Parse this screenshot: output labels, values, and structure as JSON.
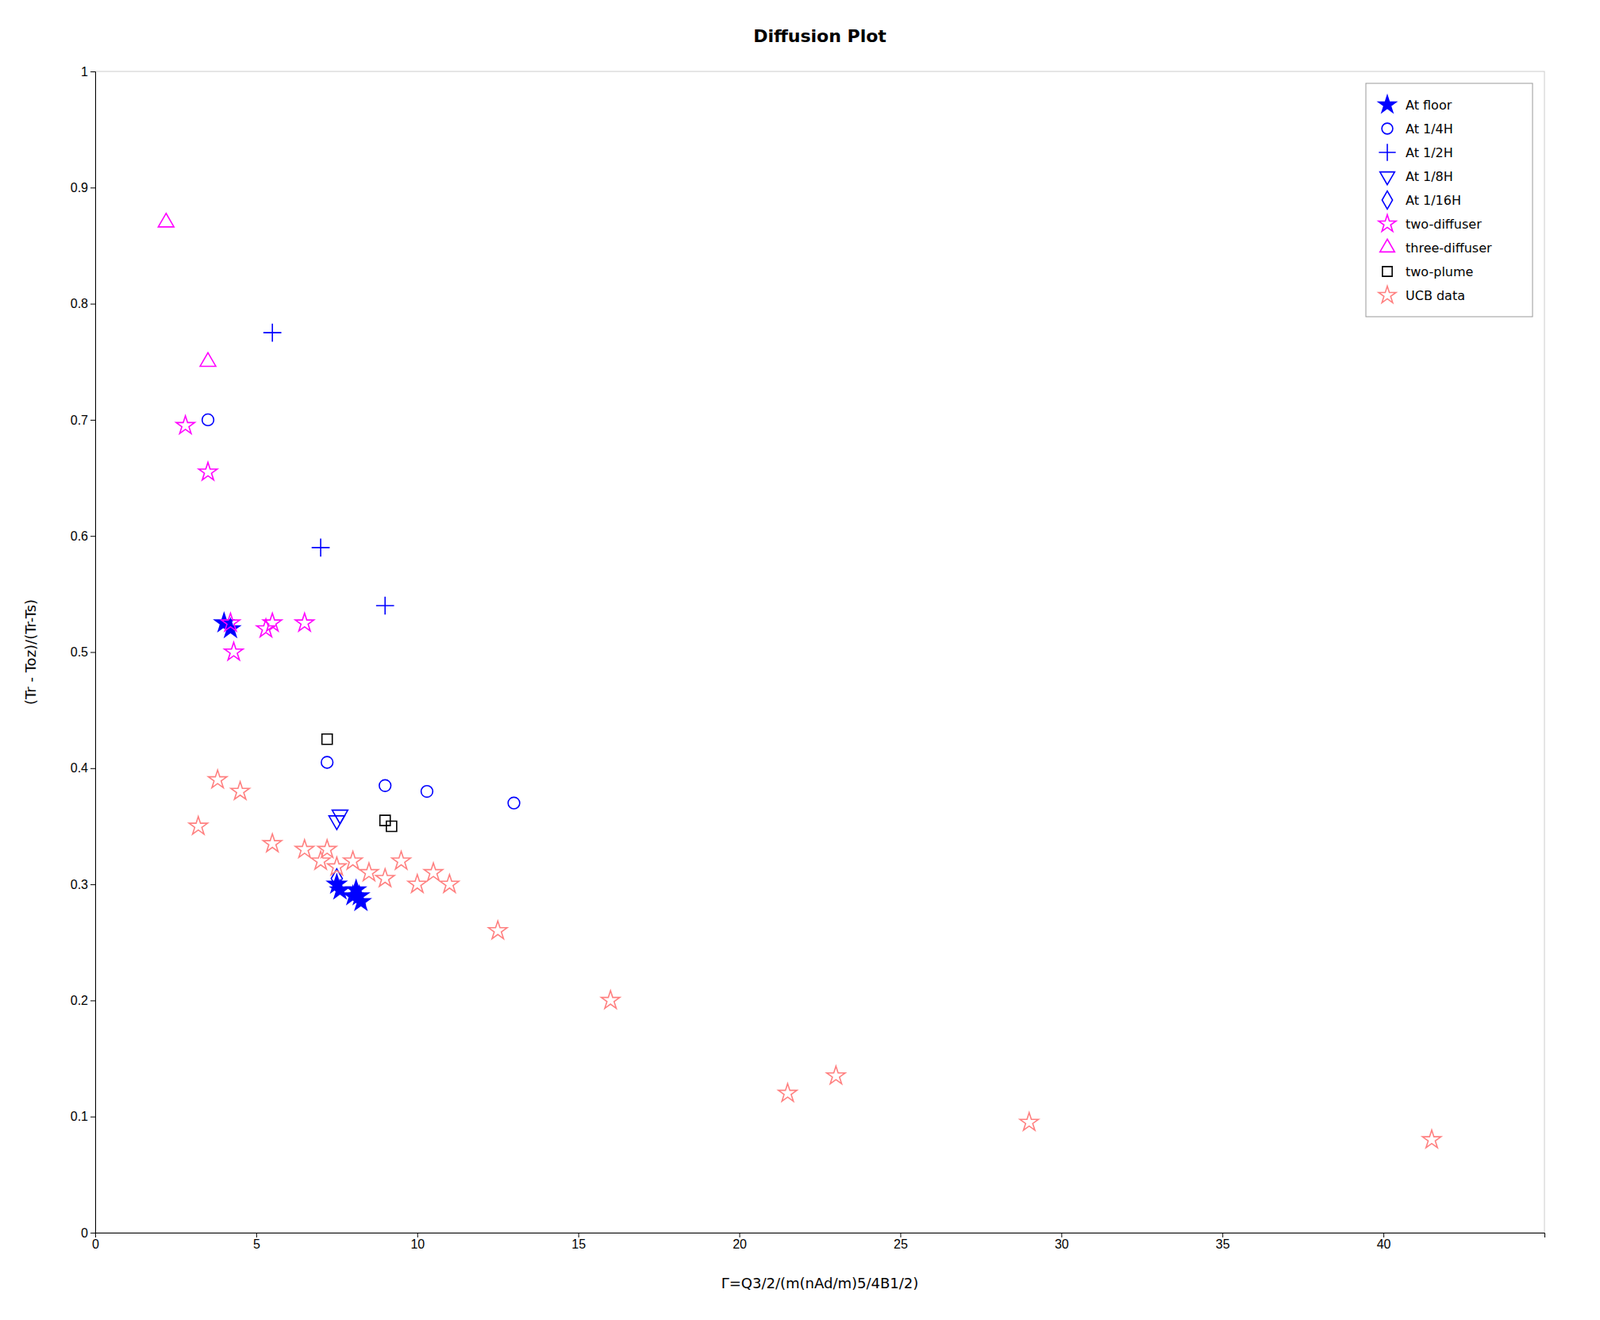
{
  "chart_data": {
    "type": "scatter",
    "title": "Diffusion Plot",
    "xlabel": "Γ=Q3/2/(m(nAd/m)5/4B1/2)",
    "ylabel": "(Tr - Toz)/(Tr-Ts)",
    "xlim": [
      0,
      45
    ],
    "ylim": [
      0,
      1
    ],
    "xticks": [
      0,
      5,
      10,
      15,
      20,
      25,
      30,
      35,
      40
    ],
    "yticks": [
      0,
      0.1,
      0.2,
      0.3,
      0.4,
      0.5,
      0.6,
      0.7,
      0.8,
      0.9,
      1
    ],
    "legend": "upper right",
    "series": [
      {
        "name": "At floor",
        "color": "blue",
        "marker": "star",
        "x": [
          4.0,
          4.2,
          7.5,
          7.6,
          8.0,
          8.1,
          8.2,
          8.25
        ],
        "values": [
          0.525,
          0.52,
          0.3,
          0.295,
          0.29,
          0.295,
          0.29,
          0.285
        ]
      },
      {
        "name": "At 1/4H",
        "color": "blue",
        "marker": "circle-open",
        "x": [
          3.5,
          7.2,
          9.0,
          10.3,
          13.0
        ],
        "values": [
          0.7,
          0.405,
          0.385,
          0.38,
          0.37
        ]
      },
      {
        "name": "At 1/2H",
        "color": "blue",
        "marker": "plus",
        "x": [
          5.5,
          7.0,
          9.0
        ],
        "values": [
          0.775,
          0.59,
          0.54
        ]
      },
      {
        "name": "At 1/8H",
        "color": "blue",
        "marker": "triangle-down-open",
        "x": [
          7.5,
          7.6
        ],
        "values": [
          0.355,
          0.36
        ]
      },
      {
        "name": "At 1/16H",
        "color": "blue",
        "marker": "diamond-open",
        "x": [
          7.5
        ],
        "values": [
          0.305
        ]
      },
      {
        "name": "two-diffuser",
        "color": "#FF00FF",
        "marker": "star-open",
        "x": [
          2.8,
          3.5,
          4.2,
          4.3,
          5.3,
          5.5,
          6.5
        ],
        "values": [
          0.695,
          0.655,
          0.525,
          0.5,
          0.52,
          0.525,
          0.525
        ]
      },
      {
        "name": "three-diffuser",
        "color": "#FF00FF",
        "marker": "triangle-up-open",
        "x": [
          2.2,
          3.5
        ],
        "values": [
          0.87,
          0.75
        ]
      },
      {
        "name": "two-plume",
        "color": "black",
        "marker": "square-open",
        "x": [
          7.2,
          9.0,
          9.2
        ],
        "values": [
          0.425,
          0.355,
          0.35
        ]
      },
      {
        "name": "UCB data",
        "color": "#FF8080",
        "marker": "star-open",
        "x": [
          3.2,
          3.8,
          4.5,
          5.5,
          6.5,
          7.0,
          7.2,
          7.5,
          8.0,
          8.5,
          9.0,
          9.5,
          10.0,
          10.5,
          11.0,
          12.5,
          16.0,
          21.5,
          23.0,
          29.0,
          41.5
        ],
        "values": [
          0.35,
          0.39,
          0.38,
          0.335,
          0.33,
          0.32,
          0.33,
          0.315,
          0.32,
          0.31,
          0.305,
          0.32,
          0.3,
          0.31,
          0.3,
          0.26,
          0.2,
          0.12,
          0.135,
          0.095,
          0.08
        ]
      }
    ]
  }
}
